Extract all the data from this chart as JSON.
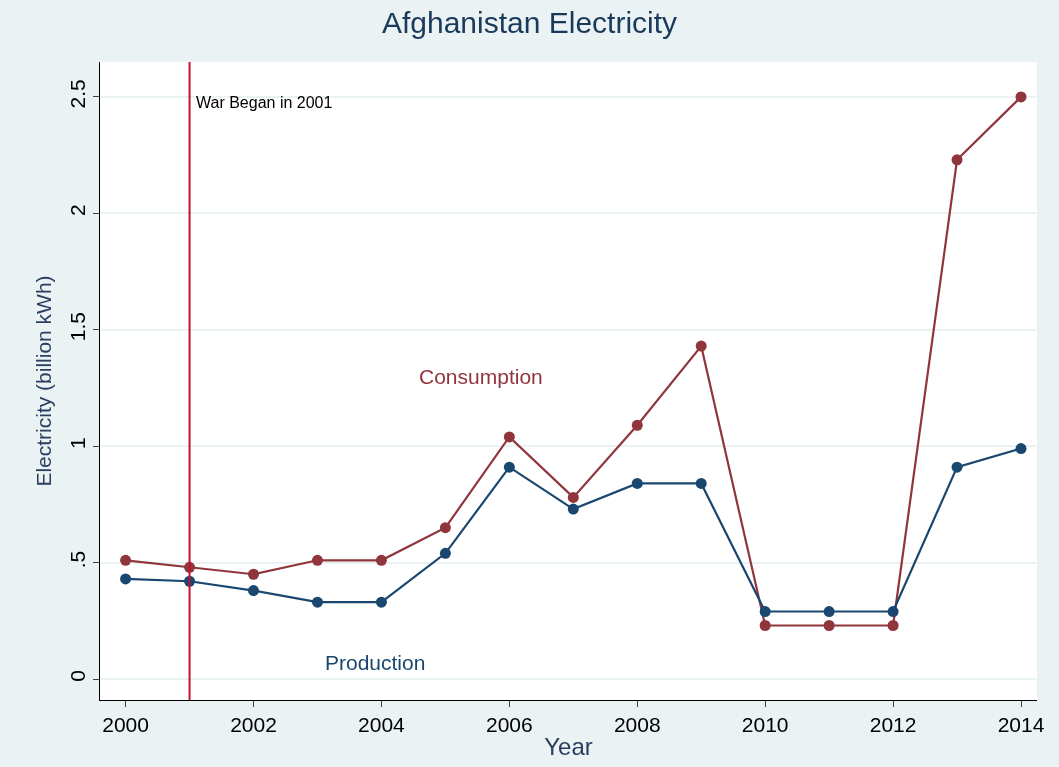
{
  "chart_data": {
    "type": "line",
    "title": "Afghanistan Electricity",
    "xlabel": "Year",
    "ylabel": "Electricity (billion kWh)",
    "x": [
      2000,
      2001,
      2002,
      2003,
      2004,
      2005,
      2006,
      2007,
      2008,
      2009,
      2010,
      2011,
      2012,
      2013,
      2014
    ],
    "series": [
      {
        "name": "Consumption",
        "color": "#90353b",
        "values": [
          0.51,
          0.48,
          0.45,
          0.51,
          0.51,
          0.65,
          1.04,
          0.78,
          1.09,
          1.43,
          0.23,
          0.23,
          0.23,
          2.23,
          2.5
        ]
      },
      {
        "name": "Production",
        "color": "#1a476f",
        "values": [
          0.43,
          0.42,
          0.38,
          0.33,
          0.33,
          0.54,
          0.91,
          0.73,
          0.84,
          0.84,
          0.29,
          0.29,
          0.29,
          0.91,
          0.99
        ]
      }
    ],
    "xlim": [
      1999.6,
      2014.25
    ],
    "xticks": [
      2000,
      2002,
      2004,
      2006,
      2008,
      2010,
      2012,
      2014
    ],
    "ylim": [
      -0.09,
      2.65
    ],
    "yticks": [
      {
        "value": 0,
        "label": "0"
      },
      {
        "value": 0.5,
        "label": ".5"
      },
      1,
      1.5,
      2,
      2.5
    ],
    "ref_lines": [
      {
        "axis": "x",
        "value": 2001,
        "label": "War Began in 2001",
        "color": "#c8102e"
      }
    ],
    "grid": "y",
    "legend": false,
    "marker": "circle",
    "line_style": "solid"
  }
}
